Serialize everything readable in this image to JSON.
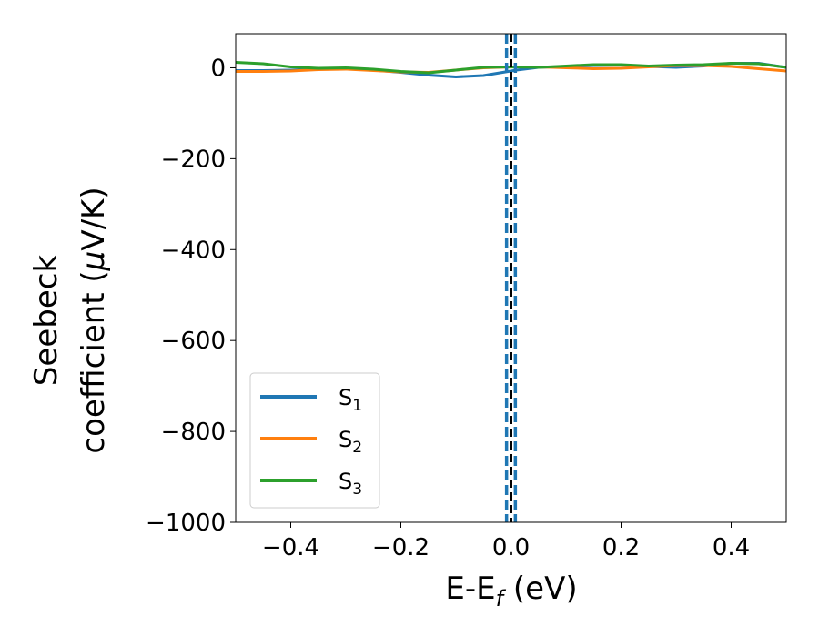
{
  "chart_data": {
    "type": "line",
    "xlabel": {
      "main": "E-E",
      "sub": "f",
      "unit": " (eV)"
    },
    "ylabel": {
      "line1": "Seebeck",
      "line2_prefix": "coefficient  (",
      "mu": "μ",
      "line2_suffix": "V/K)"
    },
    "xlim": [
      -0.5,
      0.5
    ],
    "ylim": [
      -1000,
      75
    ],
    "x_ticks": [
      -0.4,
      -0.2,
      0.0,
      0.2,
      0.4
    ],
    "x_tick_labels": [
      "−0.4",
      "−0.2",
      "0.0",
      "0.2",
      "0.4"
    ],
    "y_ticks": [
      0,
      -200,
      -400,
      -600,
      -800,
      -1000
    ],
    "y_tick_labels": [
      "0",
      "−200",
      "−400",
      "−600",
      "−800",
      "−1000"
    ],
    "grid": false,
    "legend_position": "lower-left",
    "series": [
      {
        "name": "S",
        "sub": "1",
        "color": "#1f77b4",
        "points": [
          [
            -0.5,
            -6
          ],
          [
            -0.45,
            -6
          ],
          [
            -0.4,
            -5
          ],
          [
            -0.35,
            -3
          ],
          [
            -0.3,
            -2
          ],
          [
            -0.25,
            -5
          ],
          [
            -0.2,
            -10
          ],
          [
            -0.15,
            -16
          ],
          [
            -0.1,
            -20
          ],
          [
            -0.05,
            -17
          ],
          [
            -0.01,
            -9
          ],
          [
            0.01,
            -5
          ],
          [
            0.05,
            1
          ],
          [
            0.1,
            3
          ],
          [
            0.15,
            5
          ],
          [
            0.2,
            6
          ],
          [
            0.25,
            3
          ],
          [
            0.3,
            1
          ],
          [
            0.35,
            4
          ],
          [
            0.4,
            10
          ],
          [
            0.45,
            10
          ],
          [
            0.5,
            1
          ]
        ],
        "divergence": {
          "x": [
            -0.008,
            0.008
          ],
          "style": "dashed-vertical"
        }
      },
      {
        "name": "S",
        "sub": "2",
        "color": "#ff7f0e",
        "points": [
          [
            -0.5,
            -8
          ],
          [
            -0.45,
            -8
          ],
          [
            -0.4,
            -7
          ],
          [
            -0.35,
            -4
          ],
          [
            -0.3,
            -3
          ],
          [
            -0.25,
            -6
          ],
          [
            -0.2,
            -9
          ],
          [
            -0.15,
            -10
          ],
          [
            -0.1,
            -5
          ],
          [
            -0.05,
            0
          ],
          [
            0,
            2
          ],
          [
            0.05,
            2
          ],
          [
            0.1,
            0
          ],
          [
            0.15,
            -2
          ],
          [
            0.2,
            -1
          ],
          [
            0.25,
            2
          ],
          [
            0.3,
            5
          ],
          [
            0.35,
            5
          ],
          [
            0.4,
            3
          ],
          [
            0.45,
            -2
          ],
          [
            0.5,
            -7
          ]
        ]
      },
      {
        "name": "S",
        "sub": "3",
        "color": "#2ca02c",
        "points": [
          [
            -0.5,
            12
          ],
          [
            -0.45,
            9
          ],
          [
            -0.4,
            2
          ],
          [
            -0.35,
            -1
          ],
          [
            -0.3,
            0
          ],
          [
            -0.25,
            -3
          ],
          [
            -0.2,
            -8
          ],
          [
            -0.15,
            -11
          ],
          [
            -0.1,
            -5
          ],
          [
            -0.05,
            1
          ],
          [
            0,
            2
          ],
          [
            0.05,
            1
          ],
          [
            0.1,
            4
          ],
          [
            0.15,
            7
          ],
          [
            0.2,
            7
          ],
          [
            0.25,
            4
          ],
          [
            0.3,
            6
          ],
          [
            0.35,
            7
          ],
          [
            0.4,
            10
          ],
          [
            0.45,
            9
          ],
          [
            0.5,
            1
          ]
        ]
      }
    ],
    "vline": {
      "x": 0.0,
      "color": "#000000",
      "style": "dashed"
    }
  }
}
